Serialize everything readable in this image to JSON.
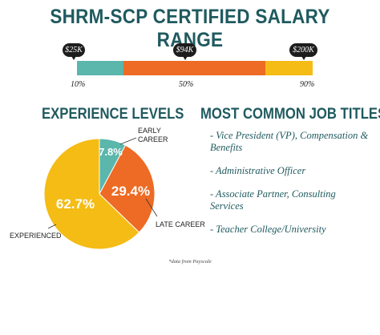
{
  "title": "SHRM-SCP CERTIFIED SALARY RANGE",
  "salary_range": {
    "low": {
      "salary": "$25K",
      "percentile": "10%"
    },
    "median": {
      "salary": "$94K",
      "percentile": "50%"
    },
    "high": {
      "salary": "$200K",
      "percentile": "90%"
    }
  },
  "experience_title": "EXPERIENCE LEVELS",
  "jobs_title": "MOST COMMON JOB TITLES",
  "jobs": [
    "- Vice President (VP), Compensation & Benefits",
    "- Administrative Officer",
    "- Associate Partner, Consulting Services",
    "- Teacher College/University"
  ],
  "source": "*data from Payscale",
  "colors": {
    "teal": "#5bb6ac",
    "orange": "#ed6b24",
    "yellow": "#f4bc14",
    "heading": "#1f5a5f"
  },
  "chart_data": [
    {
      "type": "bar",
      "title": "SHRM-SCP CERTIFIED SALARY RANGE",
      "categories": [
        "10%",
        "50%",
        "90%"
      ],
      "values": [
        25,
        94,
        200
      ],
      "unit": "$K"
    },
    {
      "type": "pie",
      "title": "EXPERIENCE LEVELS",
      "slices": [
        {
          "label": "EARLY CAREER",
          "value": 7.8,
          "value_label": "7.8%",
          "color": "#5bb6ac"
        },
        {
          "label": "LATE CAREER",
          "value": 29.4,
          "value_label": "29.4%",
          "color": "#ed6b24"
        },
        {
          "label": "EXPERIENCED",
          "value": 62.7,
          "value_label": "62.7%",
          "color": "#f4bc14"
        }
      ]
    }
  ]
}
